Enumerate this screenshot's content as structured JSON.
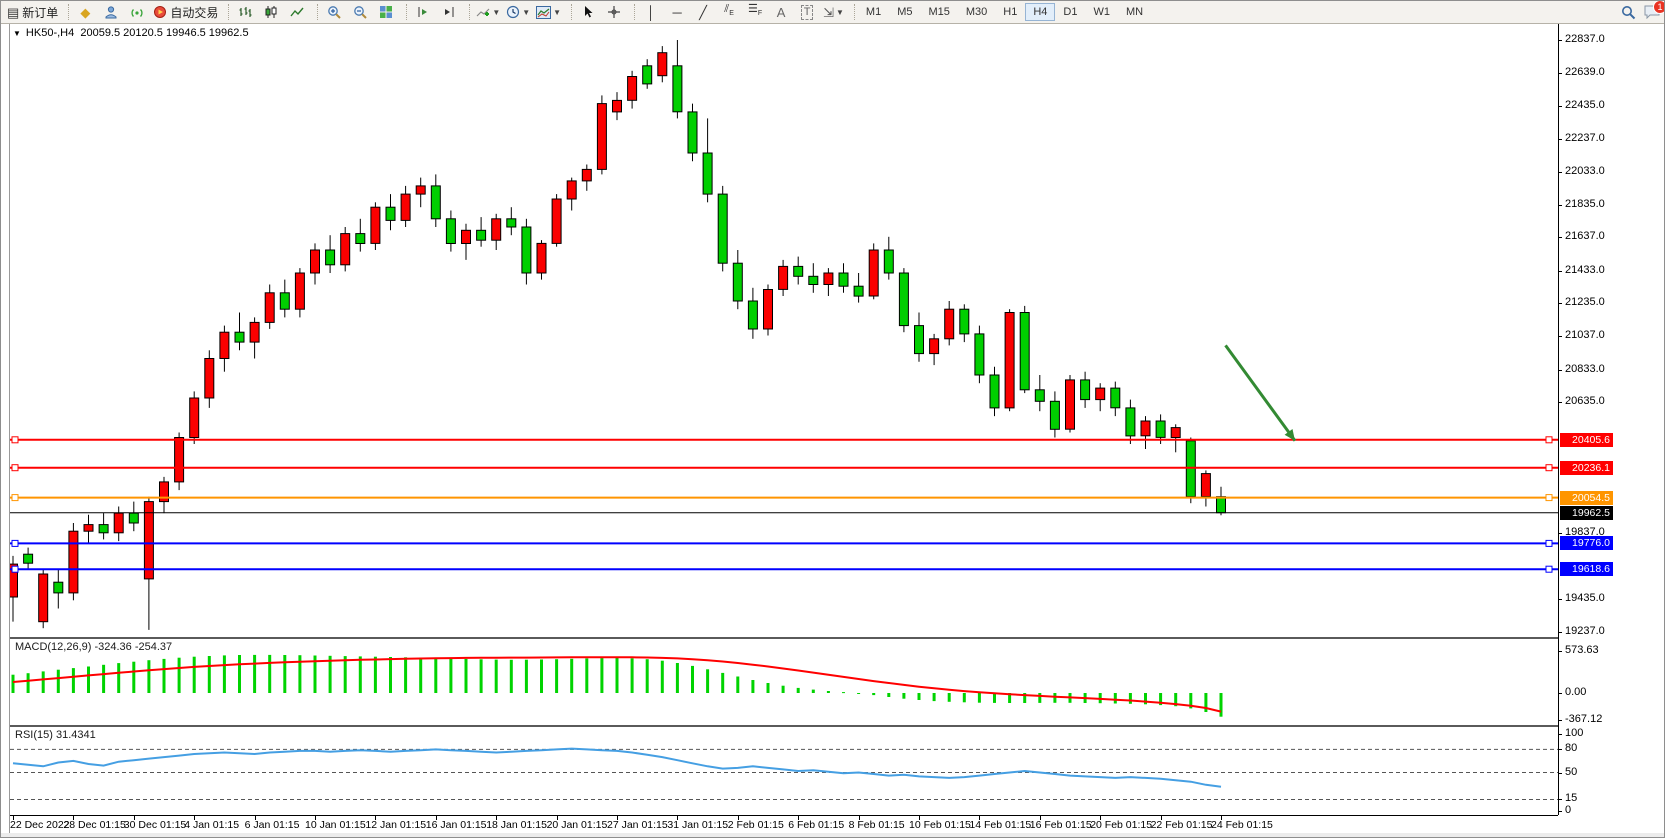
{
  "toolbar": {
    "new_order_label": "新订单",
    "algo_trading_label": "自动交易",
    "timeframes": [
      "M1",
      "M5",
      "M15",
      "M30",
      "H1",
      "H4",
      "D1",
      "W1",
      "MN"
    ],
    "active_timeframe": "H4",
    "chat_badge": "1",
    "icons": [
      "new-order-icon",
      "market-icon",
      "profile-icon",
      "signals-icon",
      "algo-trading-icon",
      "bar-chart-icon",
      "candle-chart-icon",
      "line-chart-icon",
      "zoom-in-icon",
      "zoom-out-icon",
      "tile-windows-icon",
      "auto-scroll-icon",
      "chart-shift-icon",
      "indicators-icon",
      "periods-icon",
      "templates-icon",
      "cursor-icon",
      "crosshair-icon",
      "vertical-line-icon",
      "horizontal-line-icon",
      "trendline-icon",
      "channel-icon",
      "fibonacci-icon",
      "text-icon",
      "label-icon",
      "arrows-icon",
      "search-icon",
      "chat-icon"
    ]
  },
  "chart": {
    "symbol_timeframe": "HK50-,H4",
    "ohlc_text": "20059.5 20120.5 19946.5 19962.5",
    "price_axis_ticks": [
      "22837.0",
      "22639.0",
      "22435.0",
      "22237.0",
      "22033.0",
      "21835.0",
      "21637.0",
      "21433.0",
      "21235.0",
      "21037.0",
      "20833.0",
      "20635.0",
      "19837.0",
      "19435.0",
      "19237.0"
    ]
  },
  "macd_panel": {
    "label": "MACD(12,26,9)",
    "values_text": "-324.36 -254.37",
    "axis_ticks": [
      "573.63",
      "0.00",
      "-367.12"
    ]
  },
  "rsi_panel": {
    "label": "RSI(15)",
    "value_text": "31.4341",
    "axis_ticks": [
      "100",
      "80",
      "50",
      "15",
      "0"
    ]
  },
  "chart_data": {
    "type": "candlestick",
    "symbol": "HK50-",
    "timeframe": "H4",
    "up_color": "#fa0000",
    "down_color": "#00cf00",
    "price_axis": {
      "min": 19237,
      "max": 22837
    },
    "x_labels": [
      "22 Dec 2022",
      "28 Dec 01:15",
      "30 Dec 01:15",
      "4 Jan 01:15",
      "6 Jan 01:15",
      "10 Jan 01:15",
      "12 Jan 01:15",
      "16 Jan 01:15",
      "18 Jan 01:15",
      "20 Jan 01:15",
      "27 Jan 01:15",
      "31 Jan 01:15",
      "2 Feb 01:15",
      "6 Feb 01:15",
      "8 Feb 01:15",
      "10 Feb 01:15",
      "14 Feb 01:15",
      "16 Feb 01:15",
      "20 Feb 01:15",
      "22 Feb 01:15",
      "24 Feb 01:15"
    ],
    "bars_per_label": 4,
    "candles": [
      [
        19450,
        19700,
        19300,
        19650
      ],
      [
        19710,
        19750,
        19620,
        19655
      ],
      [
        19300,
        19620,
        19260,
        19590
      ],
      [
        19540,
        19620,
        19380,
        19475
      ],
      [
        19475,
        19900,
        19430,
        19850
      ],
      [
        19850,
        19950,
        19780,
        19890
      ],
      [
        19890,
        19960,
        19800,
        19840
      ],
      [
        19840,
        20000,
        19790,
        19960
      ],
      [
        19960,
        20030,
        19850,
        19900
      ],
      [
        19560,
        20060,
        19250,
        20030
      ],
      [
        20030,
        20180,
        19960,
        20150
      ],
      [
        20150,
        20450,
        20100,
        20420
      ],
      [
        20420,
        20700,
        20380,
        20660
      ],
      [
        20660,
        20950,
        20600,
        20900
      ],
      [
        20900,
        21100,
        20820,
        21060
      ],
      [
        21060,
        21180,
        20950,
        21000
      ],
      [
        21000,
        21150,
        20900,
        21120
      ],
      [
        21120,
        21350,
        21080,
        21300
      ],
      [
        21300,
        21380,
        21150,
        21200
      ],
      [
        21200,
        21450,
        21150,
        21420
      ],
      [
        21420,
        21600,
        21350,
        21560
      ],
      [
        21560,
        21650,
        21420,
        21470
      ],
      [
        21470,
        21700,
        21430,
        21660
      ],
      [
        21660,
        21750,
        21550,
        21600
      ],
      [
        21600,
        21850,
        21560,
        21820
      ],
      [
        21820,
        21900,
        21680,
        21740
      ],
      [
        21740,
        21950,
        21700,
        21900
      ],
      [
        21900,
        22000,
        21820,
        21950
      ],
      [
        21950,
        22020,
        21700,
        21750
      ],
      [
        21750,
        21800,
        21550,
        21600
      ],
      [
        21600,
        21720,
        21500,
        21680
      ],
      [
        21680,
        21760,
        21580,
        21620
      ],
      [
        21620,
        21780,
        21560,
        21750
      ],
      [
        21750,
        21820,
        21650,
        21700
      ],
      [
        21700,
        21750,
        21350,
        21420
      ],
      [
        21420,
        21620,
        21380,
        21600
      ],
      [
        21600,
        21900,
        21580,
        21870
      ],
      [
        21870,
        22000,
        21800,
        21980
      ],
      [
        21980,
        22080,
        21920,
        22050
      ],
      [
        22050,
        22500,
        22020,
        22450
      ],
      [
        22400,
        22520,
        22350,
        22470
      ],
      [
        22470,
        22650,
        22420,
        22615
      ],
      [
        22680,
        22720,
        22540,
        22570
      ],
      [
        22620,
        22800,
        22580,
        22760
      ],
      [
        22680,
        22837,
        22360,
        22400
      ],
      [
        22400,
        22450,
        22100,
        22150
      ],
      [
        22150,
        22360,
        21850,
        21900
      ],
      [
        21900,
        21950,
        21430,
        21480
      ],
      [
        21480,
        21560,
        21200,
        21250
      ],
      [
        21250,
        21330,
        21020,
        21080
      ],
      [
        21080,
        21350,
        21040,
        21320
      ],
      [
        21320,
        21500,
        21280,
        21460
      ],
      [
        21460,
        21520,
        21350,
        21400
      ],
      [
        21400,
        21480,
        21300,
        21350
      ],
      [
        21350,
        21450,
        21280,
        21420
      ],
      [
        21420,
        21480,
        21300,
        21340
      ],
      [
        21340,
        21420,
        21240,
        21280
      ],
      [
        21280,
        21600,
        21260,
        21560
      ],
      [
        21560,
        21640,
        21380,
        21420
      ],
      [
        21420,
        21450,
        21060,
        21100
      ],
      [
        21100,
        21180,
        20880,
        20930
      ],
      [
        20930,
        21050,
        20860,
        21020
      ],
      [
        21020,
        21250,
        20980,
        21200
      ],
      [
        21200,
        21230,
        21000,
        21050
      ],
      [
        21050,
        21100,
        20750,
        20800
      ],
      [
        20800,
        20850,
        20550,
        20600
      ],
      [
        20600,
        21200,
        20580,
        21180
      ],
      [
        21180,
        21220,
        20690,
        20710
      ],
      [
        20710,
        20800,
        20580,
        20640
      ],
      [
        20640,
        20700,
        20420,
        20470
      ],
      [
        20470,
        20800,
        20450,
        20770
      ],
      [
        20770,
        20820,
        20600,
        20650
      ],
      [
        20650,
        20750,
        20580,
        20720
      ],
      [
        20720,
        20760,
        20550,
        20600
      ],
      [
        20600,
        20650,
        20380,
        20430
      ],
      [
        20430,
        20550,
        20350,
        20520
      ],
      [
        20520,
        20560,
        20380,
        20420
      ],
      [
        20420,
        20500,
        20330,
        20480
      ],
      [
        20400,
        20420,
        20020,
        20060
      ],
      [
        20060,
        20220,
        20000,
        20200
      ],
      [
        20059.5,
        20120.5,
        19946.5,
        19962.5
      ]
    ],
    "levels": [
      {
        "price": 20405.6,
        "label": "20405.6",
        "color": "#ff0000",
        "handles": true
      },
      {
        "price": 20236.1,
        "label": "20236.1",
        "color": "#ff0000",
        "handles": true
      },
      {
        "price": 20054.5,
        "label": "20054.5",
        "color": "#ff9500",
        "handles": true
      },
      {
        "price": 19962.5,
        "label": "19962.5",
        "color": "#000000",
        "handles": false
      },
      {
        "price": 19776.0,
        "label": "19776.0",
        "color": "#0000ff",
        "handles": true
      },
      {
        "price": 19618.6,
        "label": "19618.6",
        "color": "#0000ff",
        "handles": true
      }
    ],
    "annotation_arrow": {
      "from_bar": 80.3,
      "from_price": 20980,
      "to_bar": 84.9,
      "to_price": 20400,
      "color": "#338a33"
    },
    "indicators": [
      {
        "type": "macd",
        "params": "12,26,9",
        "current_text": "-324.36 -254.37",
        "hist_color": "#00d300",
        "signal_color": "#ff0000",
        "axis": {
          "max": 573.63,
          "zero": 0,
          "min": -367.12
        },
        "histogram": [
          250,
          270,
          295,
          318,
          340,
          362,
          385,
          408,
          428,
          448,
          466,
          482,
          496,
          506,
          514,
          519,
          521,
          521,
          519,
          516,
          512,
          508,
          504,
          500,
          496,
          492,
          488,
          484,
          479,
          473,
          466,
          460,
          456,
          454,
          455,
          458,
          462,
          467,
          472,
          477,
          479,
          474,
          462,
          441,
          410,
          370,
          324,
          275,
          225,
          178,
          136,
          100,
          70,
          46,
          27,
          12,
          -2,
          -28,
          -55,
          -78,
          -96,
          -110,
          -120,
          -127,
          -132,
          -135,
          -136,
          -136,
          -135,
          -134,
          -134,
          -136,
          -139,
          -143,
          -148,
          -155,
          -165,
          -180,
          -210,
          -260,
          -324.36
        ],
        "signal": [
          150,
          168,
          186,
          204,
          222,
          240,
          258,
          276,
          294,
          311,
          327,
          342,
          356,
          369,
          381,
          392,
          402,
          411,
          419,
          427,
          434,
          441,
          447,
          453,
          458,
          463,
          467,
          471,
          474,
          477,
          479,
          481,
          482,
          483,
          484,
          485,
          486,
          487,
          488,
          489,
          489,
          488,
          485,
          480,
          472,
          461,
          447,
          430,
          410,
          387,
          362,
          335,
          307,
          278,
          249,
          220,
          191,
          163,
          136,
          110,
          86,
          64,
          44,
          26,
          10,
          -4,
          -17,
          -29,
          -40,
          -50,
          -60,
          -70,
          -80,
          -91,
          -103,
          -117,
          -133,
          -152,
          -175,
          -205,
          -254.37
        ]
      },
      {
        "type": "rsi",
        "params": "15",
        "current": 31.4341,
        "line_color": "#459fe3",
        "dashed_levels": [
          80,
          50,
          15
        ],
        "axis_max": 100,
        "values": [
          62,
          60,
          58,
          63,
          65,
          61,
          59,
          64,
          66,
          68,
          70,
          72,
          74,
          75,
          76,
          75,
          74,
          76,
          77,
          78,
          78,
          77,
          78,
          79,
          78,
          77,
          78,
          79,
          80,
          79,
          78,
          77,
          76,
          77,
          78,
          79,
          80,
          81,
          80,
          79,
          78,
          76,
          73,
          70,
          66,
          62,
          58,
          55,
          56,
          58,
          56,
          54,
          52,
          53,
          51,
          49,
          50,
          48,
          46,
          47,
          45,
          44,
          43,
          44,
          46,
          48,
          50,
          52,
          50,
          48,
          46,
          45,
          44,
          43,
          44,
          43,
          42,
          40,
          38,
          34,
          31.43
        ]
      }
    ]
  }
}
